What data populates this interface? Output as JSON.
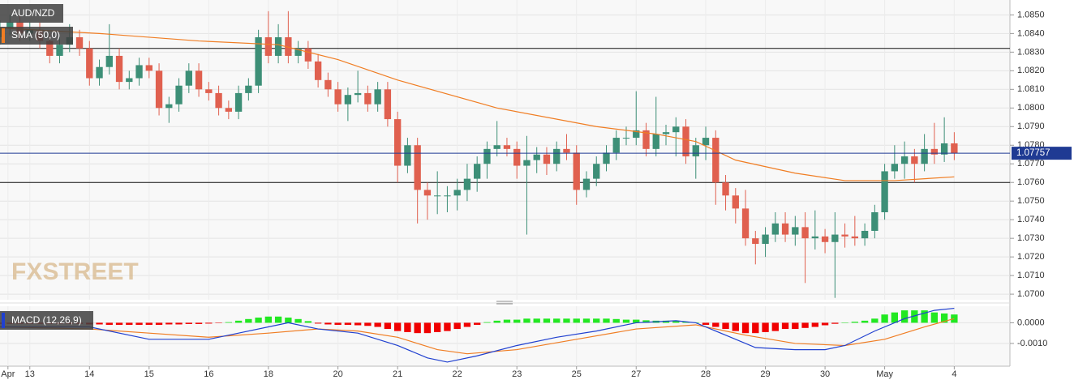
{
  "chart_data": {
    "type": "candlestick",
    "title": "AUD/NZD",
    "watermark": "FXSTREET",
    "up_color": "#3d8f77",
    "down_color": "#e0604f",
    "xlim": [
      0,
      101.6
    ],
    "xticks": [
      {
        "value": 0.8,
        "label": "Apr"
      },
      {
        "value": 3,
        "label": "13"
      },
      {
        "value": 9,
        "label": "14"
      },
      {
        "value": 15,
        "label": "15"
      },
      {
        "value": 21,
        "label": "16"
      },
      {
        "value": 27,
        "label": "18"
      },
      {
        "value": 34,
        "label": "20"
      },
      {
        "value": 40,
        "label": "21"
      },
      {
        "value": 46,
        "label": "22"
      },
      {
        "value": 52,
        "label": "23"
      },
      {
        "value": 58,
        "label": "25"
      },
      {
        "value": 64,
        "label": "27"
      },
      {
        "value": 71,
        "label": "28"
      },
      {
        "value": 77,
        "label": "29"
      },
      {
        "value": 83,
        "label": "30"
      },
      {
        "value": 89,
        "label": "May"
      },
      {
        "value": 96,
        "label": "4"
      }
    ],
    "ylim": [
      1.0697,
      1.0858
    ],
    "yticks": [
      {
        "value": 1.07,
        "label": "1.0700"
      },
      {
        "value": 1.071,
        "label": "1.0710"
      },
      {
        "value": 1.072,
        "label": "1.0720"
      },
      {
        "value": 1.073,
        "label": "1.0730"
      },
      {
        "value": 1.074,
        "label": "1.0740"
      },
      {
        "value": 1.075,
        "label": "1.0750"
      },
      {
        "value": 1.076,
        "label": "1.0760"
      },
      {
        "value": 1.077,
        "label": "1.0770"
      },
      {
        "value": 1.078,
        "label": "1.0780"
      },
      {
        "value": 1.079,
        "label": "1.0790"
      },
      {
        "value": 1.08,
        "label": "1.0800"
      },
      {
        "value": 1.081,
        "label": "1.0810"
      },
      {
        "value": 1.082,
        "label": "1.0820"
      },
      {
        "value": 1.083,
        "label": "1.0830"
      },
      {
        "value": 1.084,
        "label": "1.0840"
      },
      {
        "value": 1.085,
        "label": "1.0850"
      }
    ],
    "grid": true,
    "levels": [
      1.0832,
      1.076
    ],
    "last_price": 1.07757,
    "open": [
      1.0838,
      1.0843,
      1.0846,
      1.084,
      1.0842,
      1.0836,
      1.0828,
      1.0834,
      1.0838,
      1.0832,
      1.0816,
      1.0822,
      1.0828,
      1.0814,
      1.0816,
      1.0823,
      1.082,
      1.08,
      1.0802,
      1.0812,
      1.082,
      1.081,
      1.0808,
      1.08,
      1.0798,
      1.0808,
      1.0812,
      1.0838,
      1.0828,
      1.0838,
      1.0828,
      1.0832,
      1.0825,
      1.0815,
      1.081,
      1.0802,
      1.0807,
      1.0808,
      1.0802,
      1.081,
      1.0794,
      1.0769,
      1.078,
      1.0756,
      1.0753,
      1.0753,
      1.0753,
      1.0756,
      1.0762,
      1.077,
      1.0778,
      1.078,
      1.0778,
      1.0769,
      1.0772,
      1.0775,
      1.077,
      1.0778,
      1.0776,
      1.0756,
      1.0762,
      1.077,
      1.0776,
      1.0784,
      1.0784,
      1.0788,
      1.0778,
      1.0786,
      1.0787,
      1.079,
      1.0774,
      1.078,
      1.0784,
      1.076,
      1.0753,
      1.0746,
      1.073,
      1.0727,
      1.0732,
      1.0738,
      1.0732,
      1.0736,
      1.073,
      1.0731,
      1.0728,
      1.0732,
      1.0731,
      1.073,
      1.0734,
      1.0744,
      1.0766,
      1.077,
      1.0774,
      1.077,
      1.0778,
      1.0775,
      1.0781
    ],
    "high": [
      1.0847,
      1.085,
      1.085,
      1.0846,
      1.0846,
      1.084,
      1.0838,
      1.0845,
      1.0842,
      1.0836,
      1.0826,
      1.0845,
      1.0832,
      1.082,
      1.0827,
      1.0827,
      1.0824,
      1.0806,
      1.0816,
      1.0824,
      1.0824,
      1.0814,
      1.0812,
      1.0804,
      1.0812,
      1.0816,
      1.0842,
      1.0852,
      1.0845,
      1.0852,
      1.0836,
      1.0836,
      1.0829,
      1.0819,
      1.0814,
      1.0811,
      1.082,
      1.0812,
      1.0814,
      1.0814,
      1.0798,
      1.0784,
      1.0784,
      1.076,
      1.0766,
      1.0758,
      1.0762,
      1.077,
      1.0774,
      1.0782,
      1.0793,
      1.0784,
      1.0782,
      1.0785,
      1.0779,
      1.0779,
      1.0782,
      1.0786,
      1.078,
      1.0766,
      1.0774,
      1.078,
      1.0788,
      1.079,
      1.0809,
      1.0792,
      1.0806,
      1.0791,
      1.0795,
      1.0794,
      1.0784,
      1.079,
      1.0788,
      1.0764,
      1.0757,
      1.0756,
      1.0734,
      1.0736,
      1.0744,
      1.0744,
      1.0742,
      1.0744,
      1.0745,
      1.0735,
      1.0744,
      1.0738,
      1.0742,
      1.0738,
      1.0748,
      1.077,
      1.078,
      1.0782,
      1.0778,
      1.0786,
      1.0792,
      1.0795,
      1.0787
    ],
    "low": [
      1.0834,
      1.0839,
      1.0836,
      1.0836,
      1.0832,
      1.0824,
      1.0824,
      1.083,
      1.0828,
      1.0812,
      1.0812,
      1.0818,
      1.081,
      1.081,
      1.0812,
      1.0816,
      1.0796,
      1.0792,
      1.0798,
      1.0808,
      1.0806,
      1.0804,
      1.0796,
      1.0794,
      1.0794,
      1.0804,
      1.0808,
      1.0824,
      1.0824,
      1.0824,
      1.0824,
      1.0821,
      1.0811,
      1.0806,
      1.0798,
      1.0793,
      1.0803,
      1.0798,
      1.0798,
      1.079,
      1.076,
      1.0765,
      1.0738,
      1.074,
      1.0743,
      1.0744,
      1.0745,
      1.075,
      1.0755,
      1.0762,
      1.0774,
      1.0774,
      1.0762,
      1.0732,
      1.0765,
      1.0764,
      1.0766,
      1.0772,
      1.0748,
      1.0752,
      1.0758,
      1.0766,
      1.0772,
      1.078,
      1.078,
      1.0774,
      1.0774,
      1.078,
      1.0774,
      1.077,
      1.0762,
      1.0772,
      1.0748,
      1.0745,
      1.0738,
      1.0726,
      1.0716,
      1.072,
      1.0728,
      1.0728,
      1.0726,
      1.0706,
      1.0724,
      1.0722,
      1.0698,
      1.0725,
      1.0726,
      1.0726,
      1.073,
      1.074,
      1.0762,
      1.0762,
      1.076,
      1.0766,
      1.077,
      1.0771,
      1.0772
    ],
    "close": [
      1.0843,
      1.0846,
      1.084,
      1.0842,
      1.0836,
      1.0828,
      1.0834,
      1.0838,
      1.0832,
      1.0816,
      1.0822,
      1.0828,
      1.0814,
      1.0816,
      1.0823,
      1.082,
      1.08,
      1.0802,
      1.0812,
      1.082,
      1.081,
      1.0808,
      1.08,
      1.0798,
      1.0808,
      1.0812,
      1.0838,
      1.0828,
      1.0838,
      1.0828,
      1.0832,
      1.0825,
      1.0815,
      1.081,
      1.0802,
      1.0807,
      1.0808,
      1.0802,
      1.081,
      1.0794,
      1.0769,
      1.078,
      1.0756,
      1.0753,
      1.0753,
      1.0753,
      1.0756,
      1.0762,
      1.077,
      1.0778,
      1.078,
      1.0778,
      1.0769,
      1.0772,
      1.0775,
      1.077,
      1.0778,
      1.0776,
      1.0756,
      1.0762,
      1.077,
      1.0776,
      1.0784,
      1.0784,
      1.0788,
      1.0778,
      1.0786,
      1.0787,
      1.079,
      1.0774,
      1.078,
      1.0784,
      1.076,
      1.0753,
      1.0746,
      1.073,
      1.0727,
      1.0732,
      1.0738,
      1.0732,
      1.0736,
      1.073,
      1.0731,
      1.0728,
      1.0732,
      1.0731,
      1.073,
      1.0734,
      1.0744,
      1.0766,
      1.077,
      1.0774,
      1.077,
      1.0778,
      1.0775,
      1.0781,
      1.07757
    ],
    "sma": {
      "name": "SMA (50,0)",
      "color": "#f07d23",
      "x": [
        0,
        10,
        20,
        28,
        34,
        40,
        50,
        60,
        66,
        70,
        74,
        80,
        85,
        90,
        96
      ],
      "values": [
        1.0843,
        1.084,
        1.0836,
        1.0834,
        1.0826,
        1.0815,
        1.08,
        1.079,
        1.0786,
        1.0782,
        1.0772,
        1.0765,
        1.0761,
        1.0761,
        1.0763
      ]
    },
    "macd": {
      "name": "MACD (12,26,9)",
      "ylim": [
        -0.0021,
        0.0008
      ],
      "yticks": [
        {
          "value": 0,
          "label": "0.0000"
        },
        {
          "value": -0.001,
          "label": "-0.0010"
        }
      ],
      "hist_up_color": "#22e822",
      "hist_down_color": "#f00000",
      "histogram": [
        -5e-05,
        -5e-05,
        -5e-05,
        -5e-05,
        -5e-05,
        -5e-05,
        -5e-05,
        -5e-05,
        -5e-05,
        -8e-05,
        -8e-05,
        -0.0001,
        -0.0001,
        -0.0001,
        -0.0001,
        -0.0001,
        -0.0001,
        -8e-05,
        -8e-05,
        -6e-05,
        -6e-05,
        -4e-05,
        -2e-05,
        3e-05,
        0.0001,
        0.00018,
        0.00025,
        0.0003,
        0.0003,
        0.00025,
        0.00018,
        8e-05,
        -4e-05,
        -8e-05,
        -0.0001,
        -0.0001,
        -0.00012,
        -0.00015,
        -0.0002,
        -0.0003,
        -0.0004,
        -0.00045,
        -0.0005,
        -0.0005,
        -0.00045,
        -0.0004,
        -0.0003,
        -0.0002,
        -0.0001,
        3e-05,
        0.0001,
        0.00015,
        0.00015,
        0.0002,
        0.0002,
        0.0002,
        0.0002,
        0.0002,
        0.0002,
        0.0002,
        0.0002,
        0.0002,
        0.00018,
        0.00015,
        0.00015,
        0.00012,
        0.0001,
        0.0001,
        8e-05,
        5e-05,
        2e-05,
        -0.0001,
        -0.0002,
        -0.0003,
        -0.0004,
        -0.0005,
        -0.0005,
        -0.00045,
        -0.0004,
        -0.0003,
        -0.0003,
        -0.00025,
        -0.0002,
        -0.00012,
        -5e-05,
        0,
        5e-05,
        0.0001,
        0.0002,
        0.0004,
        0.0005,
        0.0006,
        0.0006,
        0.0006,
        0.0005,
        0.00045,
        0.0004
      ],
      "line": {
        "color": "#2040d0",
        "x": [
          0,
          9,
          15,
          21,
          24,
          27,
          29,
          32,
          36,
          40,
          43,
          45,
          48,
          52,
          56,
          60,
          64,
          68,
          70,
          73,
          76,
          80,
          83,
          85,
          88,
          91,
          94,
          96
        ],
        "values": [
          -0.0002,
          -0.0002,
          -0.0008,
          -0.0008,
          -0.0005,
          -0.0002,
          0,
          -0.0003,
          -0.0005,
          -0.0011,
          -0.0017,
          -0.0019,
          -0.0016,
          -0.0011,
          -0.0007,
          -0.0004,
          0,
          0.0001,
          0,
          -0.0006,
          -0.0012,
          -0.0013,
          -0.0013,
          -0.0011,
          -0.0004,
          0.0002,
          0.0006,
          0.0007
        ]
      },
      "signal": {
        "color": "#f07d23",
        "x": [
          0,
          9,
          15,
          21,
          27,
          32,
          36,
          40,
          44,
          47,
          52,
          58,
          64,
          70,
          75,
          80,
          85,
          89,
          93,
          96
        ],
        "values": [
          -0.0002,
          -0.0003,
          -0.0005,
          -0.0007,
          -0.0005,
          -0.0003,
          -0.0004,
          -0.0007,
          -0.0013,
          -0.0015,
          -0.0013,
          -0.0008,
          -0.0003,
          -0.0001,
          -0.0006,
          -0.001,
          -0.0011,
          -0.0008,
          -0.0002,
          0.0002
        ]
      }
    }
  }
}
